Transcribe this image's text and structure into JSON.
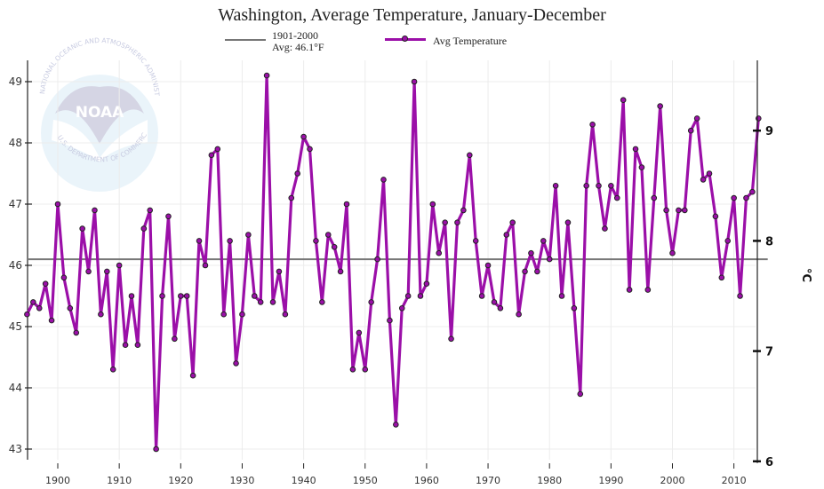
{
  "chart_data": {
    "type": "line",
    "title": "Washington, Average Temperature, January-December",
    "xlabel": "",
    "ylabel": "",
    "ylabel_right": "°C",
    "legend": {
      "placement": "top-center",
      "entries": [
        {
          "label_line1": "1901-2000",
          "label_line2": "Avg: 46.1°F",
          "style": "gray-line"
        },
        {
          "label": "Avg Temperature",
          "style": "purple-line-marker"
        }
      ]
    },
    "baseline": {
      "label": "1901-2000 Avg",
      "value": 46.1,
      "units": "°F",
      "color": "#777777"
    },
    "series": [
      {
        "name": "Avg Temperature",
        "color": "#9b0fa8",
        "x": [
          1895,
          1896,
          1897,
          1898,
          1899,
          1900,
          1901,
          1902,
          1903,
          1904,
          1905,
          1906,
          1907,
          1908,
          1909,
          1910,
          1911,
          1912,
          1913,
          1914,
          1915,
          1916,
          1917,
          1918,
          1919,
          1920,
          1921,
          1922,
          1923,
          1924,
          1925,
          1926,
          1927,
          1928,
          1929,
          1930,
          1931,
          1932,
          1933,
          1934,
          1935,
          1936,
          1937,
          1938,
          1939,
          1940,
          1941,
          1942,
          1943,
          1944,
          1945,
          1946,
          1947,
          1948,
          1949,
          1950,
          1951,
          1952,
          1953,
          1954,
          1955,
          1956,
          1957,
          1958,
          1959,
          1960,
          1961,
          1962,
          1963,
          1964,
          1965,
          1966,
          1967,
          1968,
          1969,
          1970,
          1971,
          1972,
          1973,
          1974,
          1975,
          1976,
          1977,
          1978,
          1979,
          1980,
          1981,
          1982,
          1983,
          1984,
          1985,
          1986,
          1987,
          1988,
          1989,
          1990,
          1991,
          1992,
          1993,
          1994,
          1995,
          1996,
          1997,
          1998,
          1999,
          2000,
          2001,
          2002,
          2003,
          2004,
          2005,
          2006,
          2007,
          2008,
          2009,
          2010,
          2011,
          2012,
          2013,
          2014
        ],
        "values": [
          45.2,
          45.4,
          45.3,
          45.7,
          45.1,
          47.0,
          45.8,
          45.3,
          44.9,
          46.6,
          45.9,
          46.9,
          45.2,
          45.9,
          44.3,
          46.0,
          44.7,
          45.5,
          44.7,
          46.6,
          46.9,
          43.0,
          45.5,
          46.8,
          44.8,
          45.5,
          45.5,
          44.2,
          46.4,
          46.0,
          47.8,
          47.9,
          45.2,
          46.4,
          44.4,
          45.2,
          46.5,
          45.5,
          45.4,
          49.1,
          45.4,
          45.9,
          45.2,
          47.1,
          47.5,
          48.1,
          47.9,
          46.4,
          45.4,
          46.5,
          46.3,
          45.9,
          47.0,
          44.3,
          44.9,
          44.3,
          45.4,
          46.1,
          47.4,
          45.1,
          43.4,
          45.3,
          45.5,
          49.0,
          45.5,
          45.7,
          47.0,
          46.2,
          46.7,
          44.8,
          46.7,
          46.9,
          47.8,
          46.4,
          45.5,
          46.0,
          45.4,
          45.3,
          46.5,
          46.7,
          45.2,
          45.9,
          46.2,
          45.9,
          46.4,
          46.1,
          47.3,
          45.5,
          46.7,
          45.3,
          43.9,
          47.3,
          48.3,
          47.3,
          46.6,
          47.3,
          47.1,
          48.7,
          45.6,
          47.9,
          47.6,
          45.6,
          47.1,
          48.6,
          46.9,
          46.2,
          46.9,
          46.9,
          48.2,
          48.4,
          47.4,
          47.5,
          46.8,
          45.8,
          46.4,
          47.1,
          45.5,
          47.1,
          47.2,
          48.4
        ]
      }
    ],
    "xlim": [
      1895,
      2015
    ],
    "ylim": [
      42.8,
      49.3
    ],
    "ylim_units": "°F",
    "x_ticks": [
      1900,
      1910,
      1920,
      1930,
      1940,
      1950,
      1960,
      1970,
      1980,
      1990,
      2000,
      2010
    ],
    "y_ticks": [
      43,
      44,
      45,
      46,
      47,
      48,
      49
    ],
    "y_ticks_right": [
      6,
      7,
      8,
      9
    ],
    "grid": true,
    "watermark": {
      "text_ring": "NATIONAL OCEANIC AND ATMOSPHERIC ADMINISTRATION · U.S. DEPARTMENT OF COMMERCE",
      "center_text": "NOAA"
    }
  }
}
